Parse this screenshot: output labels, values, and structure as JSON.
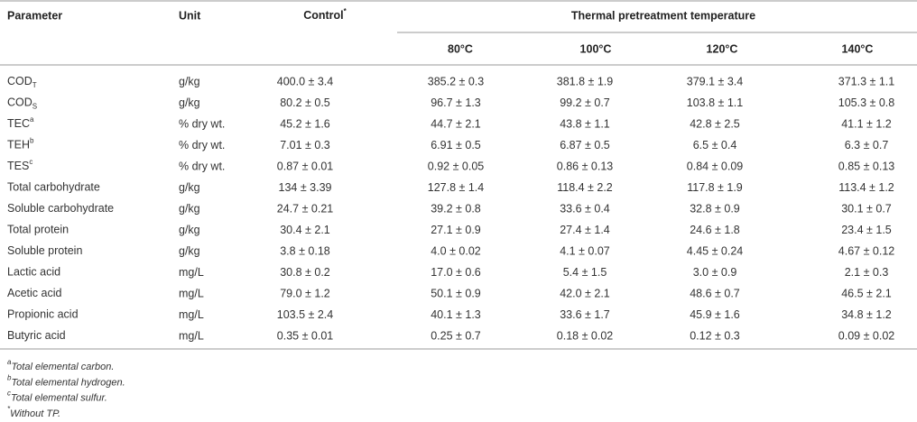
{
  "table": {
    "header": {
      "parameter": "Parameter",
      "unit": "Unit",
      "control": {
        "text": "Control",
        "sup": "*"
      },
      "group": "Thermal pretreatment temperature",
      "temperatures": [
        "80°C",
        "100°C",
        "120°C",
        "140°C"
      ]
    },
    "rows": [
      {
        "label": {
          "text": "COD",
          "sub": "T"
        },
        "cells": [
          "g/kg",
          "400.0 ± 3.4",
          "385.2 ± 0.3",
          "381.8 ± 1.9",
          "379.1 ± 3.4",
          "371.3 ± 1.1"
        ]
      },
      {
        "label": {
          "text": "COD",
          "sub": "S"
        },
        "cells": [
          "g/kg",
          "80.2 ± 0.5",
          "96.7 ± 1.3",
          "99.2 ± 0.7",
          "103.8 ± 1.1",
          "105.3 ± 0.8"
        ]
      },
      {
        "label": {
          "text": "TEC",
          "sup": "a"
        },
        "cells": [
          "% dry wt.",
          "45.2 ± 1.6",
          "44.7 ± 2.1",
          "43.8 ± 1.1",
          "42.8 ± 2.5",
          "41.1 ± 1.2"
        ]
      },
      {
        "label": {
          "text": "TEH",
          "sup": "b"
        },
        "cells": [
          "% dry wt.",
          "7.01 ± 0.3",
          "6.91 ± 0.5",
          "6.87 ± 0.5",
          "6.5 ± 0.4",
          "6.3 ± 0.7"
        ]
      },
      {
        "label": {
          "text": "TES",
          "sup": "c"
        },
        "cells": [
          "% dry wt.",
          "0.87 ± 0.01",
          "0.92 ± 0.05",
          "0.86 ± 0.13",
          "0.84 ± 0.09",
          "0.85 ± 0.13"
        ]
      },
      {
        "label": {
          "text": "Total carbohydrate"
        },
        "cells": [
          "g/kg",
          "134 ± 3.39",
          "127.8 ± 1.4",
          "118.4 ± 2.2",
          "117.8 ± 1.9",
          "113.4 ± 1.2"
        ]
      },
      {
        "label": {
          "text": "Soluble carbohydrate"
        },
        "cells": [
          "g/kg",
          "24.7 ± 0.21",
          "39.2 ± 0.8",
          "33.6 ± 0.4",
          "32.8 ± 0.9",
          "30.1 ± 0.7"
        ]
      },
      {
        "label": {
          "text": "Total protein"
        },
        "cells": [
          "g/kg",
          "30.4 ± 2.1",
          "27.1 ± 0.9",
          "27.4 ± 1.4",
          "24.6 ± 1.8",
          "23.4 ± 1.5"
        ]
      },
      {
        "label": {
          "text": "Soluble protein"
        },
        "cells": [
          "g/kg",
          "3.8 ± 0.18",
          "4.0 ± 0.02",
          "4.1 ± 0.07",
          "4.45 ± 0.24",
          "4.67 ± 0.12"
        ]
      },
      {
        "label": {
          "text": "Lactic acid"
        },
        "cells": [
          "mg/L",
          "30.8 ± 0.2",
          "17.0 ± 0.6",
          "5.4 ± 1.5",
          "3.0 ± 0.9",
          "2.1 ± 0.3"
        ]
      },
      {
        "label": {
          "text": "Acetic acid"
        },
        "cells": [
          "mg/L",
          "79.0 ± 1.2",
          "50.1 ± 0.9",
          "42.0 ± 2.1",
          "48.6 ± 0.7",
          "46.5 ± 2.1"
        ]
      },
      {
        "label": {
          "text": "Propionic acid"
        },
        "cells": [
          "mg/L",
          "103.5 ± 2.4",
          "40.1 ± 1.3",
          "33.6 ± 1.7",
          "45.9 ± 1.6",
          "34.8 ± 1.2"
        ]
      },
      {
        "label": {
          "text": "Butyric acid"
        },
        "cells": [
          "mg/L",
          "0.35 ± 0.01",
          "0.25 ± 0.7",
          "0.18 ± 0.02",
          "0.12 ± 0.3",
          "0.09 ± 0.02"
        ]
      }
    ],
    "footnotes": [
      {
        "mark": "a",
        "text": "Total elemental carbon."
      },
      {
        "mark": "b",
        "text": "Total elemental hydrogen."
      },
      {
        "mark": "c",
        "text": "Total elemental sulfur."
      },
      {
        "mark": "*",
        "text": "Without TP."
      }
    ]
  }
}
